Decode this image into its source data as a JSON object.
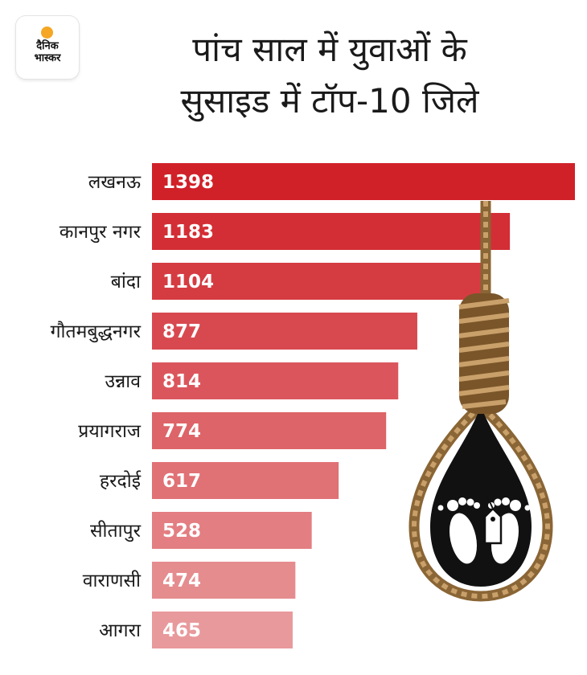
{
  "logo": {
    "line1": "दैनिक",
    "line2": "भास्कर"
  },
  "header": {
    "title_line1": "पांच साल में युवाओं के",
    "title_line2": "सुसाइड में टॉप-10 जिले"
  },
  "icons": {
    "illustration": "noose-icon",
    "footprints": "footprints-icon",
    "tag": "tag-icon"
  },
  "colors": {
    "bar_top": "#d02128",
    "bar_bottom": "#e8999c",
    "logo_sun": "#f5a623"
  },
  "chart_data": {
    "type": "bar",
    "orientation": "horizontal",
    "title": "पांच साल में युवाओं के सुसाइड में टॉप-10 जिले",
    "categories": [
      "लखनऊ",
      "कानपुर नगर",
      "बांदा",
      "गौतमबुद्धनगर",
      "उन्नाव",
      "प्रयागराज",
      "हरदोई",
      "सीतापुर",
      "वाराणसी",
      "आगरा"
    ],
    "values": [
      1398,
      1183,
      1104,
      877,
      814,
      774,
      617,
      528,
      474,
      465
    ],
    "xlim": [
      0,
      1398
    ],
    "grid": false,
    "legend": "none",
    "data_labels": "inside-left"
  }
}
